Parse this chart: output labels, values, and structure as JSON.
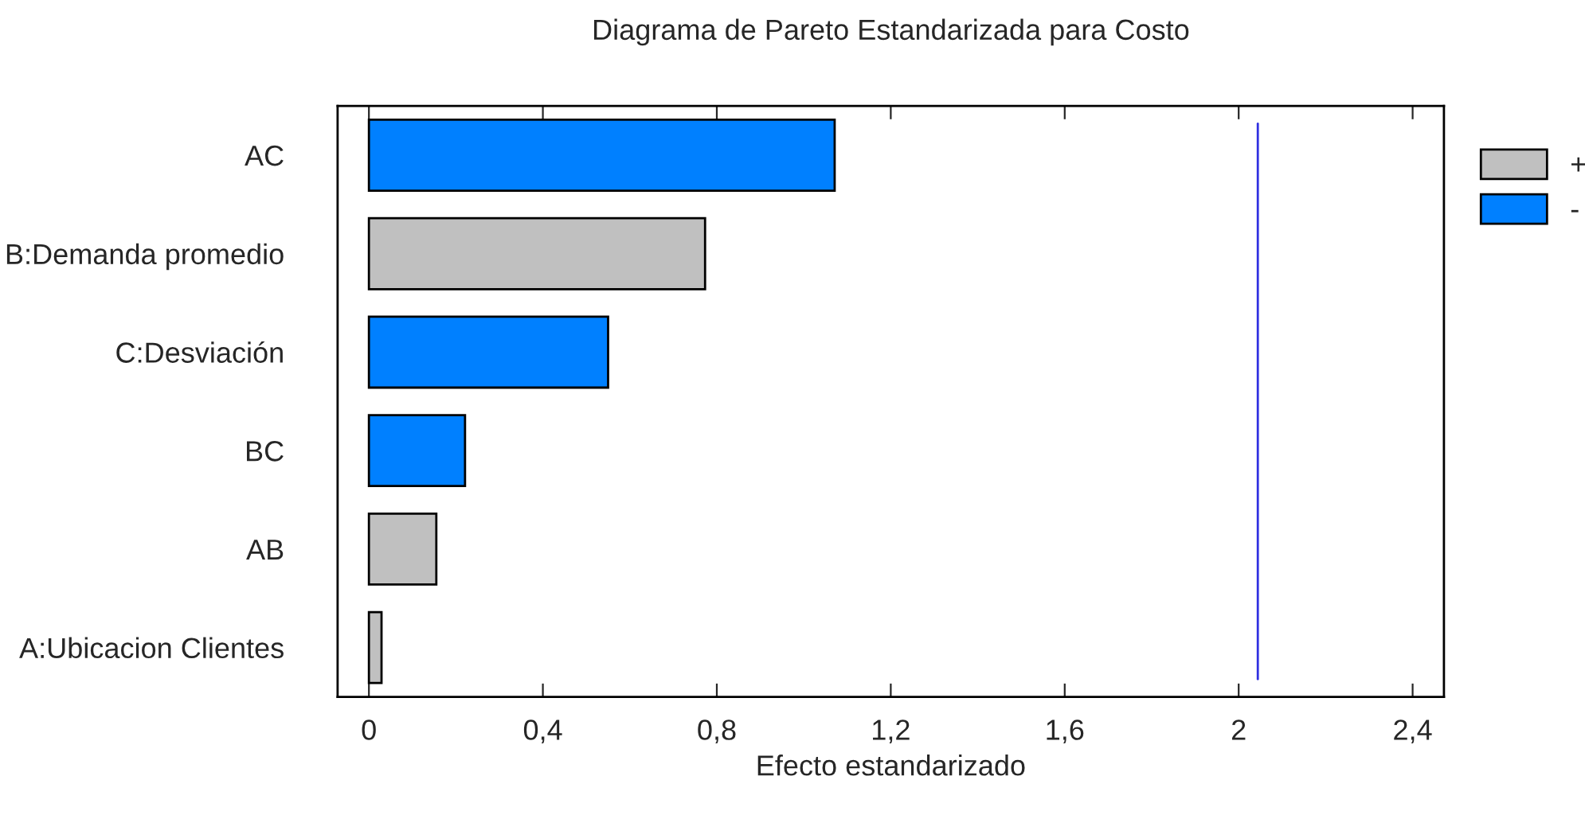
{
  "chart_data": {
    "type": "bar",
    "orientation": "horizontal",
    "title": "Diagrama de Pareto Estandarizada para Costo",
    "xlabel": "Efecto estandarizado",
    "categories": [
      "AC",
      "B:Demanda promedio",
      "C:Desviación",
      "BC",
      "AB",
      "A:Ubicacion Clientes"
    ],
    "series": [
      {
        "name": "+",
        "color": "#c0c0c0",
        "values": [
          null,
          0.773,
          null,
          null,
          0.155,
          0.029
        ]
      },
      {
        "name": "-",
        "color": "#0080ff",
        "values": [
          1.071,
          null,
          0.55,
          0.221,
          null,
          null
        ]
      }
    ],
    "xlim": [
      -0.072,
      2.472
    ],
    "xticks": [
      0,
      {
        "value": 0.4,
        "label": "0,4"
      },
      {
        "value": 0.8,
        "label": "0,8"
      },
      {
        "value": 1.2,
        "label": "1,2"
      },
      {
        "value": 1.6,
        "label": "1,6"
      },
      2,
      {
        "value": 2.4,
        "label": "2,4"
      }
    ],
    "ref_lines": [
      {
        "axis": "x",
        "value": 2.044,
        "color": "#3030e0"
      }
    ],
    "grid": false,
    "legend": "top right"
  }
}
